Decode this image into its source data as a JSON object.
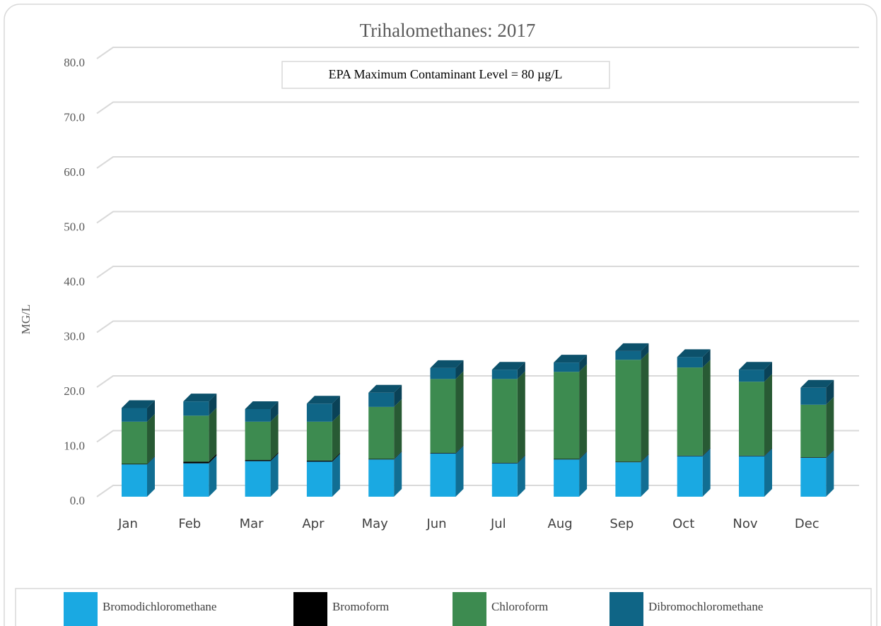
{
  "chart_data": {
    "type": "bar3d_stacked",
    "title": "Trihalomethanes: 2017",
    "annotation": "EPA Maximum Contaminant Level = 80 µg/L",
    "y_label": "MG/L",
    "categories": [
      "Jan",
      "Feb",
      "Mar",
      "Apr",
      "May",
      "Jun",
      "Jul",
      "Aug",
      "Sep",
      "Oct",
      "Nov",
      "Dec"
    ],
    "series": [
      {
        "name": "Bromodichloromethane",
        "color": "#1aa9e2",
        "values": [
          5.9,
          6.1,
          6.5,
          6.4,
          6.8,
          7.9,
          6.1,
          6.8,
          6.3,
          7.4,
          7.4,
          7.1
        ]
      },
      {
        "name": "Bromoform",
        "color": "#000000",
        "values": [
          0.1,
          0.3,
          0.2,
          0.2,
          0.1,
          0.1,
          0.1,
          0.1,
          0.1,
          0.1,
          0.1,
          0.1
        ]
      },
      {
        "name": "Chloroform",
        "color": "#3d8b50",
        "values": [
          7.7,
          8.4,
          7.0,
          7.1,
          9.5,
          13.5,
          15.3,
          15.9,
          18.6,
          16.1,
          13.5,
          9.6
        ]
      },
      {
        "name": "Dibromochloromethane",
        "color": "#0f6586",
        "values": [
          2.5,
          2.6,
          2.3,
          3.3,
          2.6,
          2.0,
          1.7,
          1.7,
          1.6,
          1.9,
          2.2,
          3.1
        ]
      }
    ],
    "ylim": [
      0,
      80
    ],
    "yticks": [
      {
        "value": 0,
        "label": "0.0"
      },
      {
        "value": 10,
        "label": "10.0"
      },
      {
        "value": 20,
        "label": "20.0"
      },
      {
        "value": 30,
        "label": "30.0"
      },
      {
        "value": 40,
        "label": "40.0"
      },
      {
        "value": 50,
        "label": "50.0"
      },
      {
        "value": 60,
        "label": "60.0"
      },
      {
        "value": 70,
        "label": "70.0"
      },
      {
        "value": 80,
        "label": "80.0"
      }
    ],
    "grid": true,
    "legend": "bottom"
  }
}
